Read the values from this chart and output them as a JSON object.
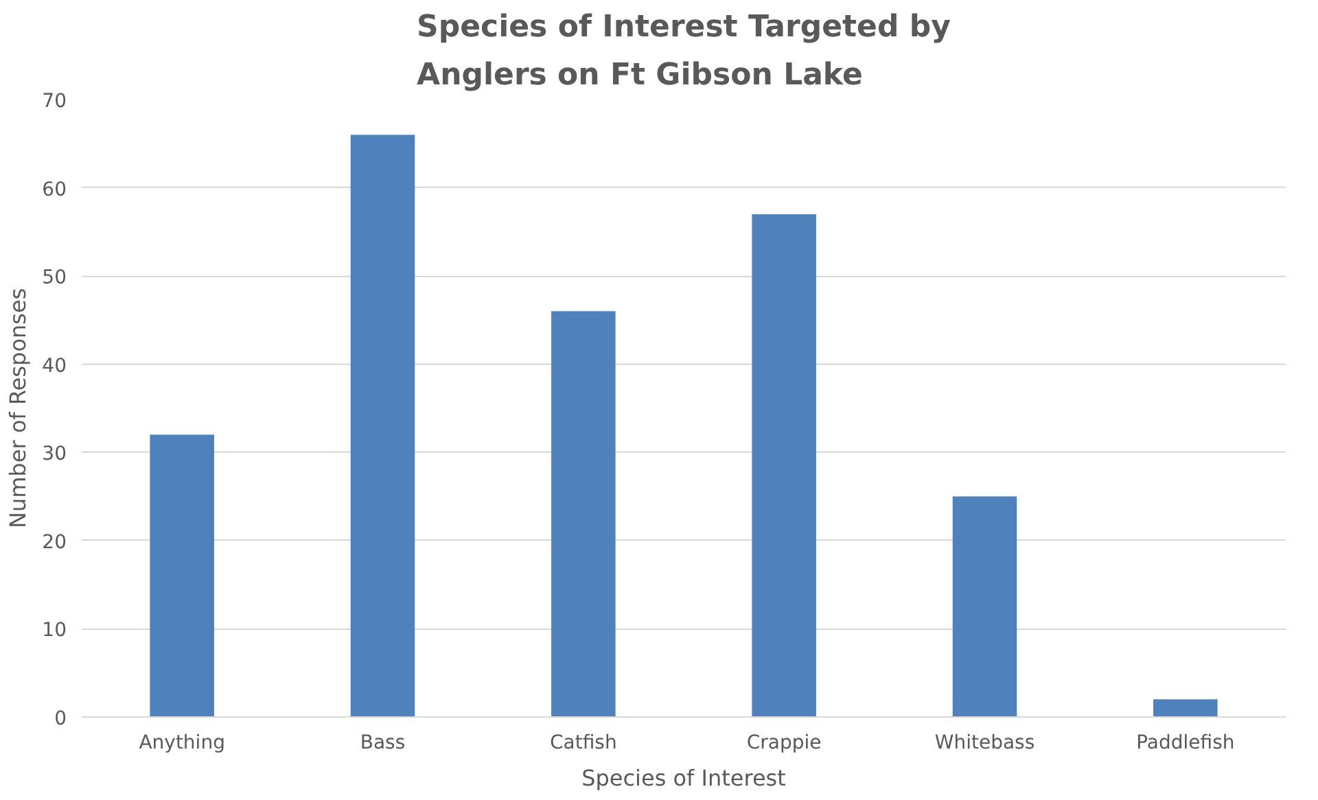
{
  "chart_data": {
    "type": "bar",
    "title": "Species of Interest Targeted by Anglers on Ft Gibson Lake",
    "xlabel": "Species of Interest",
    "ylabel": "Number of Responses",
    "categories": [
      "Anything",
      "Bass",
      "Catfish",
      "Crappie",
      "Whitebass",
      "Paddlefish"
    ],
    "values": [
      32,
      66,
      46,
      57,
      25,
      2
    ],
    "color": "#4f81bd",
    "ylim": [
      0,
      70
    ],
    "yticks": [
      0,
      10,
      20,
      30,
      40,
      50,
      60,
      70
    ],
    "grid": "y"
  }
}
